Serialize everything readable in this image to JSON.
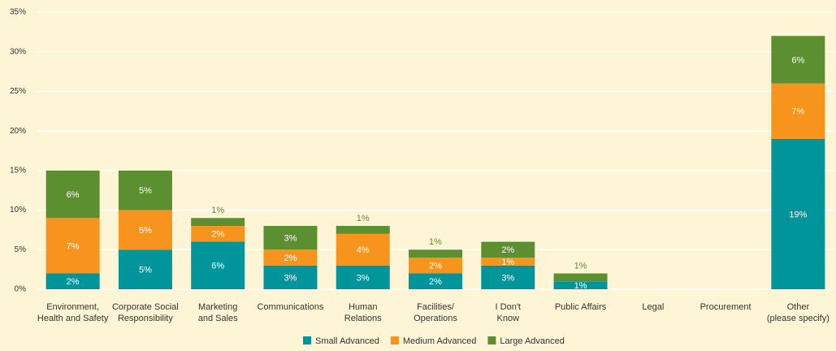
{
  "chart_data": {
    "type": "stacked_bar",
    "categories": [
      "Environment,\nHealth and Safety",
      "Corporate Social\nResponsibility",
      "Marketing\nand Sales",
      "Communications",
      "Human\nRelations",
      "Facilities/\nOperations",
      "I Don't\nKnow",
      "Public Affairs",
      "Legal",
      "Procurement",
      "Other\n(please specify)"
    ],
    "series": [
      {
        "name": "Small Advanced",
        "color": "#00959a",
        "values": [
          2,
          5,
          6,
          3,
          3,
          2,
          3,
          1,
          0,
          0,
          19
        ],
        "value_labels": [
          "2%",
          "5%",
          "6%",
          "3%",
          "3%",
          "2%",
          "3%",
          "1%",
          null,
          null,
          "19%"
        ]
      },
      {
        "name": "Medium Advanced",
        "color": "#f7941d",
        "values": [
          7,
          5,
          2,
          2,
          4,
          2,
          1,
          0,
          0,
          0,
          7
        ],
        "value_labels": [
          "7%",
          "5%",
          "2%",
          "2%",
          "4%",
          "2%",
          "1%",
          null,
          null,
          null,
          "7%"
        ]
      },
      {
        "name": "Large Advanced",
        "color": "#5b8f2f",
        "values": [
          6,
          5,
          1,
          3,
          1,
          1,
          2,
          1,
          0,
          0,
          6
        ],
        "value_labels": [
          "6%",
          "5%",
          "1%",
          "3%",
          "1%",
          "1%",
          "2%",
          "1%",
          null,
          null,
          "6%"
        ]
      }
    ],
    "ylim": [
      0,
      35
    ],
    "yticks": [
      {
        "value": 0,
        "label": "0%"
      },
      {
        "value": 5,
        "label": "5%"
      },
      {
        "value": 10,
        "label": "10%"
      },
      {
        "value": 15,
        "label": "15%"
      },
      {
        "value": 20,
        "label": "20%"
      },
      {
        "value": 25,
        "label": "25%"
      },
      {
        "value": 30,
        "label": "30%"
      },
      {
        "value": 35,
        "label": "35%"
      }
    ],
    "grid": true,
    "legend": "bottom"
  }
}
